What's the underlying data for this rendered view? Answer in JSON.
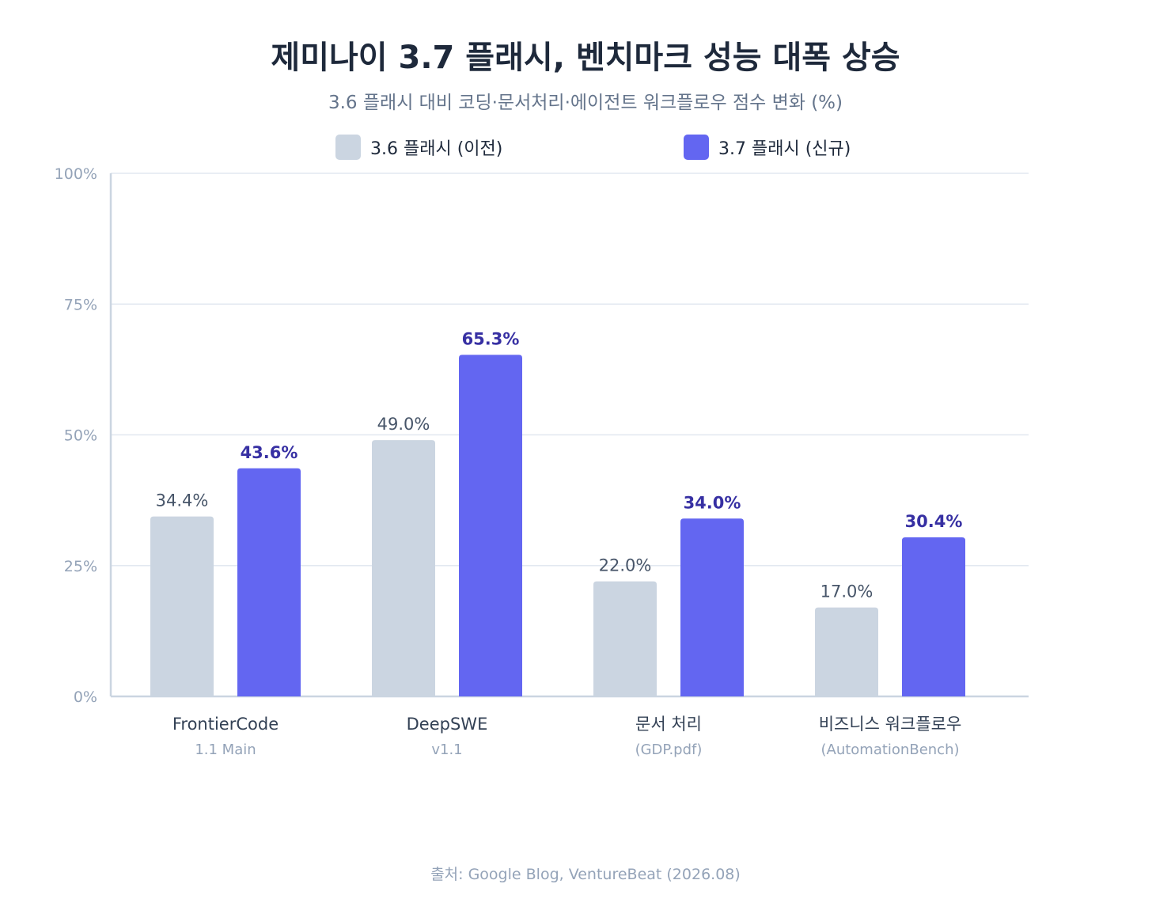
{
  "title": "제미나이 3.7 플래시, 벤치마크 성능 대폭 상승",
  "subtitle": "3.6 플래시 대비 코딩·문서처리·에이전트 워크플로우 점수 변화 (%)",
  "source": "출처: Google Blog, VentureBeat (2026.08)",
  "colors": {
    "old": "#cbd5e1",
    "new": "#6366f1",
    "new_label": "#3730a3",
    "old_label": "#475569",
    "grid": "#e2e8f0",
    "axis": "#cbd5e1",
    "tick": "#94a3b8",
    "category": "#334155",
    "category_sub": "#94a3b8"
  },
  "chart_data": {
    "type": "bar",
    "title": "제미나이 3.7 플래시, 벤치마크 성능 대폭 상승",
    "subtitle": "3.6 플래시 대비 코딩·문서처리·에이전트 워크플로우 점수 변화 (%)",
    "categories": [
      "FrontierCode",
      "DeepSWE",
      "문서 처리",
      "비즈니스 워크플로우"
    ],
    "category_subtitles": [
      "1.1 Main",
      "v1.1",
      "(GDP.pdf)",
      "(AutomationBench)"
    ],
    "series": [
      {
        "name": "3.6 플래시 (이전)",
        "values": [
          34.4,
          49.0,
          22.0,
          17.0
        ],
        "labels": [
          "34.4%",
          "49.0%",
          "22.0%",
          "17.0%"
        ]
      },
      {
        "name": "3.7 플래시 (신규)",
        "values": [
          43.6,
          65.3,
          34.0,
          30.4
        ],
        "labels": [
          "43.6%",
          "65.3%",
          "34.0%",
          "30.4%"
        ]
      }
    ],
    "ylim": [
      0,
      100
    ],
    "yticks": [
      0,
      25,
      50,
      75,
      100
    ],
    "ytick_labels": [
      "0%",
      "25%",
      "50%",
      "75%",
      "100%"
    ],
    "grid": true,
    "legend_position": "top-center",
    "xlabel": "",
    "ylabel": ""
  }
}
